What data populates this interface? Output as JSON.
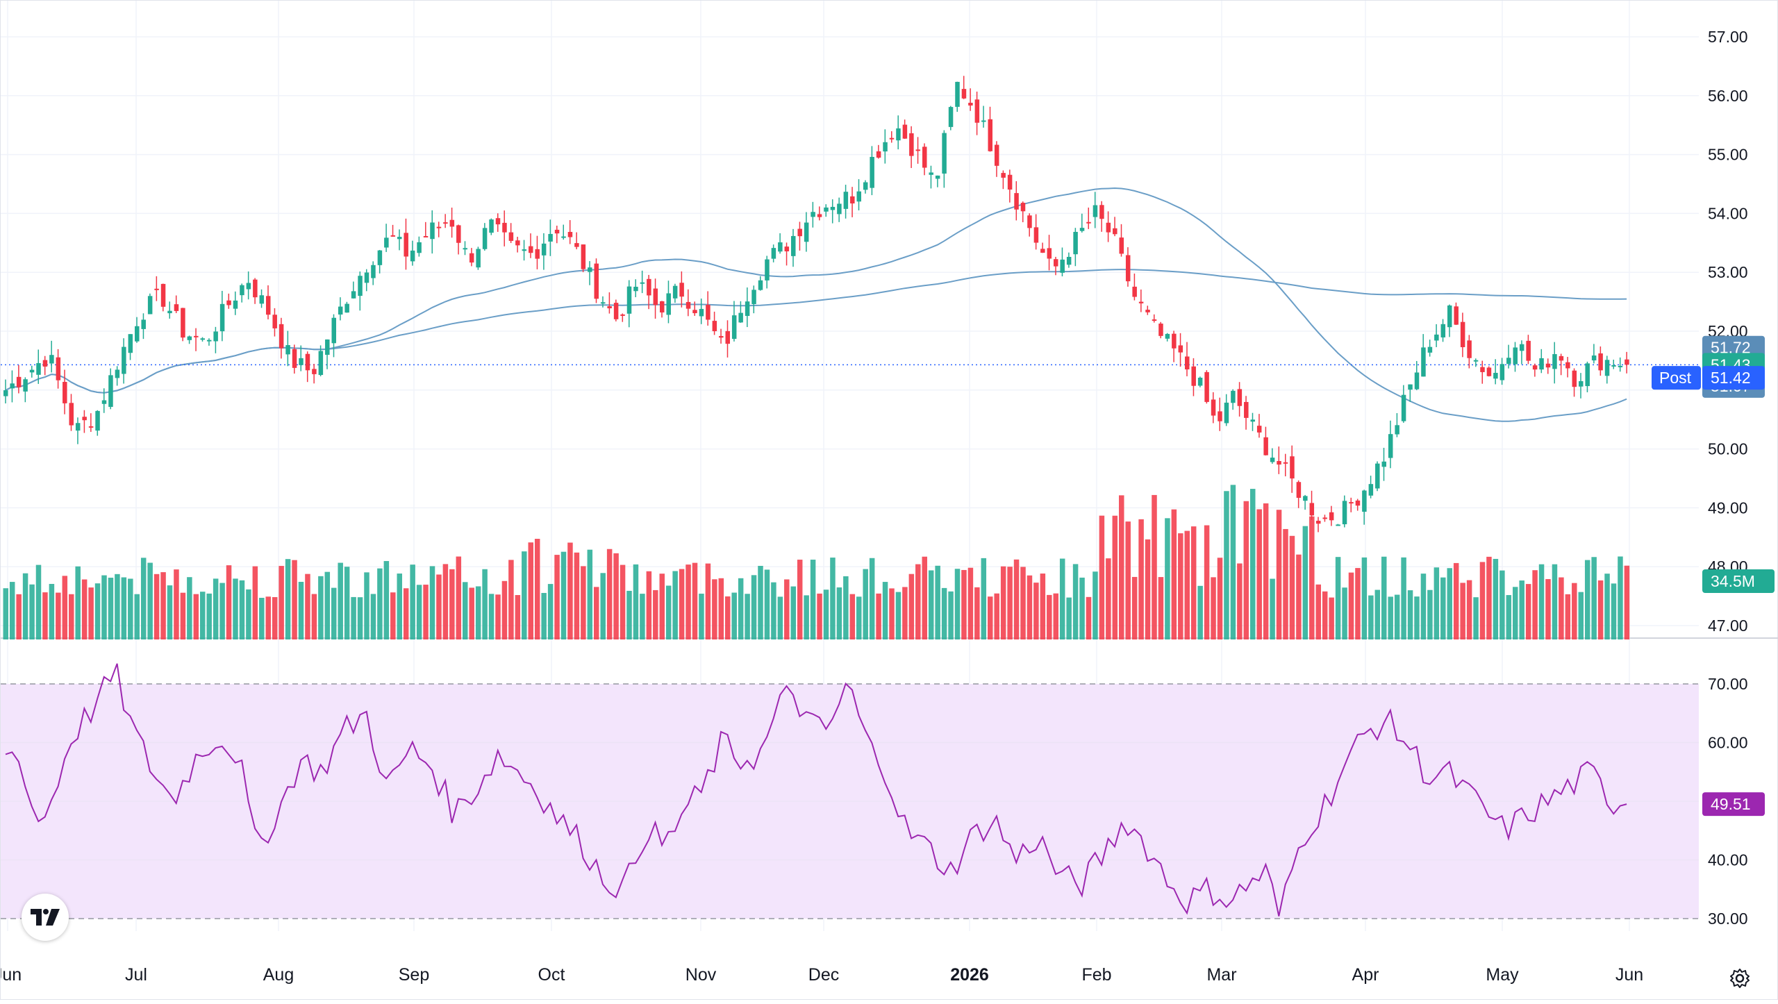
{
  "chart_data": [
    {
      "type": "candlestick",
      "title": "",
      "ylim": [
        47,
        57
      ],
      "y_ticks": [
        "57.00",
        "56.00",
        "55.00",
        "54.00",
        "53.00",
        "52.00",
        "51.00",
        "50.00",
        "49.00",
        "48.00",
        "47.00"
      ],
      "x_ticks": [
        "Jun",
        "Jul",
        "Aug",
        "Sep",
        "Oct",
        "Nov",
        "Dec",
        "2026",
        "Feb",
        "Mar",
        "Apr",
        "May",
        "Jun"
      ],
      "close_path": [
        [
          0,
          51.0
        ],
        [
          10,
          51.3
        ],
        [
          20,
          51.6
        ],
        [
          32,
          50.3
        ],
        [
          42,
          50.6
        ],
        [
          52,
          51.5
        ],
        [
          62,
          52.3
        ],
        [
          72,
          52.6
        ],
        [
          82,
          52.0
        ],
        [
          92,
          51.8
        ],
        [
          102,
          52.4
        ],
        [
          112,
          52.9
        ],
        [
          122,
          52.3
        ],
        [
          132,
          51.5
        ],
        [
          142,
          51.3
        ],
        [
          150,
          52.0
        ],
        [
          158,
          52.6
        ],
        [
          168,
          53.2
        ],
        [
          178,
          53.6
        ],
        [
          186,
          53.3
        ],
        [
          196,
          53.7
        ],
        [
          206,
          53.9
        ],
        [
          214,
          53.2
        ],
        [
          224,
          53.8
        ],
        [
          234,
          53.4
        ],
        [
          244,
          53.3
        ],
        [
          254,
          53.8
        ],
        [
          262,
          53.5
        ],
        [
          272,
          52.8
        ],
        [
          282,
          52.2
        ],
        [
          292,
          52.8
        ],
        [
          302,
          52.4
        ],
        [
          312,
          52.7
        ],
        [
          322,
          52.3
        ],
        [
          332,
          51.7
        ],
        [
          342,
          52.6
        ],
        [
          352,
          53.2
        ],
        [
          362,
          53.5
        ],
        [
          372,
          54.0
        ],
        [
          382,
          54.2
        ],
        [
          392,
          54.3
        ],
        [
          402,
          55.0
        ],
        [
          412,
          55.5
        ],
        [
          420,
          55.1
        ],
        [
          430,
          54.5
        ],
        [
          440,
          56.2
        ],
        [
          448,
          55.8
        ],
        [
          458,
          55.0
        ],
        [
          468,
          54.2
        ],
        [
          476,
          53.6
        ],
        [
          484,
          53.0
        ],
        [
          494,
          53.5
        ],
        [
          504,
          54.0
        ],
        [
          512,
          53.6
        ],
        [
          522,
          52.6
        ],
        [
          532,
          52.0
        ],
        [
          542,
          51.6
        ],
        [
          552,
          51.1
        ],
        [
          560,
          50.4
        ],
        [
          568,
          50.9
        ],
        [
          578,
          50.3
        ],
        [
          588,
          49.8
        ],
        [
          598,
          49.3
        ],
        [
          608,
          48.8
        ],
        [
          618,
          48.9
        ],
        [
          628,
          49.3
        ],
        [
          638,
          49.9
        ],
        [
          648,
          50.9
        ],
        [
          658,
          51.8
        ],
        [
          668,
          52.3
        ],
        [
          678,
          51.6
        ],
        [
          688,
          51.2
        ],
        [
          698,
          51.9
        ],
        [
          708,
          51.3
        ],
        [
          718,
          51.7
        ],
        [
          726,
          51.2
        ],
        [
          736,
          51.5
        ],
        [
          744,
          51.5
        ],
        [
          750,
          51.43
        ]
      ],
      "last_price": 51.43,
      "post_price": 51.42,
      "ma_short_last": 51.07,
      "ma_long_last": 51.72,
      "volume_last": "34.5M"
    },
    {
      "type": "line",
      "title": "",
      "ylim": [
        27,
        73
      ],
      "y_ticks": [
        "70.00",
        "60.00",
        "50.00",
        "40.00",
        "30.00"
      ],
      "bands": [
        30,
        70
      ],
      "rsi_path": [
        [
          0,
          59
        ],
        [
          8,
          56
        ],
        [
          14,
          46
        ],
        [
          20,
          49
        ],
        [
          30,
          61
        ],
        [
          40,
          66
        ],
        [
          50,
          72
        ],
        [
          58,
          62
        ],
        [
          66,
          56
        ],
        [
          76,
          50
        ],
        [
          86,
          57
        ],
        [
          96,
          61
        ],
        [
          106,
          58
        ],
        [
          114,
          42
        ],
        [
          124,
          48
        ],
        [
          134,
          57
        ],
        [
          144,
          55
        ],
        [
          154,
          62
        ],
        [
          164,
          65
        ],
        [
          174,
          52
        ],
        [
          184,
          59
        ],
        [
          194,
          56
        ],
        [
          204,
          48
        ],
        [
          214,
          52
        ],
        [
          224,
          58
        ],
        [
          234,
          55
        ],
        [
          242,
          52
        ],
        [
          252,
          47
        ],
        [
          262,
          43
        ],
        [
          272,
          37
        ],
        [
          282,
          35
        ],
        [
          292,
          46
        ],
        [
          300,
          42
        ],
        [
          308,
          48
        ],
        [
          318,
          52
        ],
        [
          326,
          60
        ],
        [
          334,
          57
        ],
        [
          344,
          58
        ],
        [
          352,
          66
        ],
        [
          358,
          69
        ],
        [
          366,
          63
        ],
        [
          374,
          62
        ],
        [
          384,
          70
        ],
        [
          392,
          60
        ],
        [
          400,
          56
        ],
        [
          410,
          45
        ],
        [
          420,
          42
        ],
        [
          430,
          38
        ],
        [
          440,
          44
        ],
        [
          450,
          47
        ],
        [
          460,
          40
        ],
        [
          470,
          44
        ],
        [
          480,
          37
        ],
        [
          490,
          36
        ],
        [
          500,
          41
        ],
        [
          510,
          47
        ],
        [
          520,
          42
        ],
        [
          530,
          36
        ],
        [
          538,
          33
        ],
        [
          548,
          35
        ],
        [
          558,
          33
        ],
        [
          566,
          36
        ],
        [
          574,
          38
        ],
        [
          580,
          30
        ],
        [
          586,
          39
        ],
        [
          592,
          45
        ],
        [
          600,
          49
        ],
        [
          608,
          55
        ],
        [
          618,
          61
        ],
        [
          628,
          64
        ],
        [
          638,
          60
        ],
        [
          648,
          54
        ],
        [
          656,
          55
        ],
        [
          664,
          52
        ],
        [
          674,
          48
        ],
        [
          682,
          45
        ],
        [
          690,
          47
        ],
        [
          698,
          49
        ],
        [
          706,
          51
        ],
        [
          714,
          53
        ],
        [
          722,
          55
        ],
        [
          730,
          50
        ],
        [
          738,
          49.51
        ]
      ],
      "last_value": 49.51
    }
  ],
  "ui": {
    "post_label": "Post",
    "logo_text": "TV"
  },
  "colors": {
    "up": "#22ab94",
    "down": "#f23645",
    "ma": "#6a9ec7",
    "rsi_line": "#9c27b0",
    "rsi_band": "#f3e5fc",
    "last_price_badge": "#22ab94",
    "post_badge": "#2962ff",
    "ma_badge": "#5b8db8",
    "volume_badge": "#22ab94",
    "rsi_badge": "#9c27b0"
  }
}
